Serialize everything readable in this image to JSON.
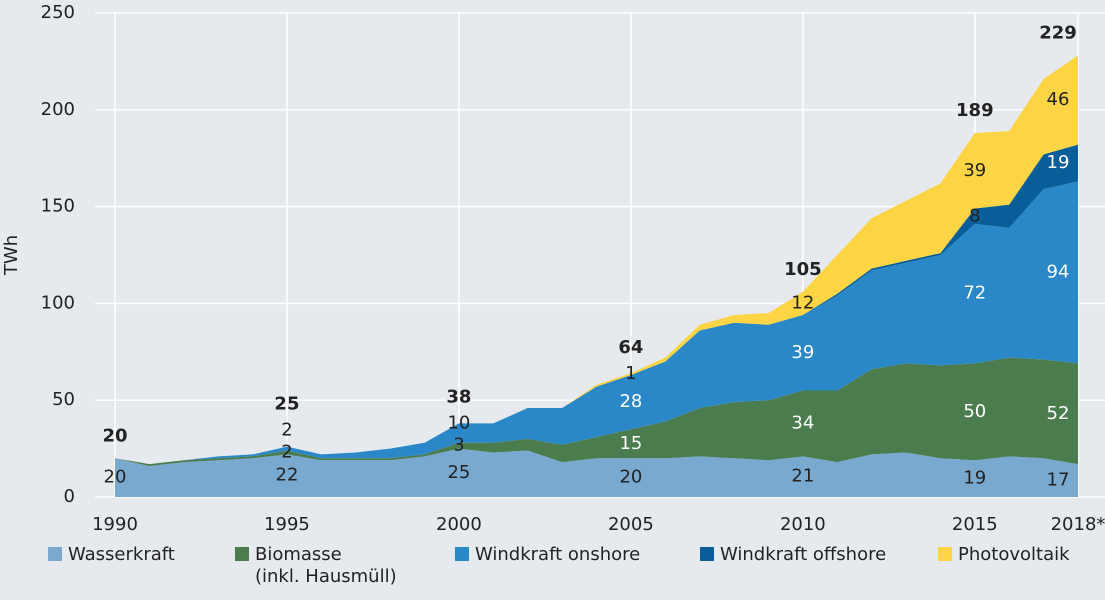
{
  "chart_data": {
    "type": "stacked-area",
    "y_label": "TWh",
    "x": [
      1990,
      1991,
      1992,
      1993,
      1994,
      1995,
      1996,
      1997,
      1998,
      1999,
      2000,
      2001,
      2002,
      2003,
      2004,
      2005,
      2006,
      2007,
      2008,
      2009,
      2010,
      2011,
      2012,
      2013,
      2014,
      2015,
      2016,
      2017,
      2018
    ],
    "series": [
      {
        "name": "Wasserkraft",
        "color": "#7aa9d0",
        "values": [
          20,
          16,
          18,
          19,
          20,
          22,
          19,
          19,
          19,
          21,
          25,
          23,
          24,
          18,
          20,
          20,
          20,
          21,
          20,
          19,
          21,
          18,
          22,
          23,
          20,
          19,
          21,
          20,
          17
        ],
        "value_labels": [
          "20",
          null,
          null,
          null,
          null,
          "22",
          null,
          null,
          null,
          null,
          "25",
          null,
          null,
          null,
          null,
          "20",
          null,
          null,
          null,
          null,
          "21",
          null,
          null,
          null,
          null,
          "19",
          null,
          null,
          "17"
        ]
      },
      {
        "name": "Biomasse\n(inkl. Hausmüll)",
        "color": "#4a7c4e",
        "values": [
          0,
          1,
          1,
          1,
          1,
          2,
          1,
          1,
          1,
          1,
          3,
          5,
          6,
          9,
          11,
          15,
          19,
          25,
          29,
          31,
          34,
          37,
          44,
          46,
          48,
          50,
          51,
          51,
          52
        ],
        "value_labels": [
          null,
          null,
          null,
          null,
          null,
          "2",
          null,
          null,
          null,
          null,
          "3",
          null,
          null,
          null,
          null,
          "15",
          null,
          null,
          null,
          null,
          "34",
          null,
          null,
          null,
          null,
          "50",
          null,
          null,
          "52"
        ]
      },
      {
        "name": "Windkraft onshore",
        "color": "#2a88c8",
        "values": [
          0,
          0,
          0,
          1,
          1,
          2,
          2,
          3,
          5,
          6,
          10,
          10,
          16,
          19,
          26,
          28,
          31,
          40,
          41,
          39,
          39,
          49,
          51,
          52,
          57,
          72,
          67,
          88,
          94
        ],
        "value_labels": [
          null,
          null,
          null,
          null,
          null,
          "2",
          null,
          null,
          null,
          null,
          "10",
          null,
          null,
          null,
          null,
          "28",
          null,
          null,
          null,
          null,
          "39",
          null,
          null,
          null,
          null,
          "72",
          null,
          null,
          "94"
        ]
      },
      {
        "name": "Windkraft offshore",
        "color": "#085e99",
        "values": [
          0,
          0,
          0,
          0,
          0,
          0,
          0,
          0,
          0,
          0,
          0,
          0,
          0,
          0,
          0,
          0,
          0,
          0,
          0,
          0,
          0,
          1,
          1,
          1,
          1,
          8,
          12,
          18,
          19
        ],
        "value_labels": [
          null,
          null,
          null,
          null,
          null,
          null,
          null,
          null,
          null,
          null,
          null,
          null,
          null,
          null,
          null,
          null,
          null,
          null,
          null,
          null,
          null,
          null,
          null,
          null,
          null,
          "8",
          null,
          null,
          "19"
        ]
      },
      {
        "name": "Photovoltaik",
        "color": "#fdd444",
        "values": [
          0,
          0,
          0,
          0,
          0,
          0,
          0,
          0,
          0,
          0,
          0,
          0,
          0,
          0,
          1,
          1,
          2,
          3,
          4,
          6,
          12,
          20,
          26,
          31,
          36,
          39,
          38,
          39,
          46
        ],
        "value_labels": [
          null,
          null,
          null,
          null,
          null,
          null,
          null,
          null,
          null,
          null,
          null,
          null,
          null,
          null,
          null,
          "1",
          null,
          null,
          null,
          null,
          "12",
          null,
          null,
          null,
          null,
          "39",
          null,
          null,
          "46"
        ]
      }
    ],
    "totals": [
      20,
      null,
      null,
      null,
      null,
      25,
      null,
      null,
      null,
      null,
      38,
      null,
      null,
      null,
      null,
      64,
      null,
      null,
      null,
      null,
      105,
      null,
      null,
      null,
      null,
      189,
      null,
      null,
      229
    ],
    "xlim": [
      1990,
      2018
    ],
    "ylim": [
      0,
      250
    ],
    "xticks": [
      1990,
      1995,
      2000,
      2005,
      2010,
      2015,
      {
        "value": 2018,
        "label": "2018*"
      }
    ],
    "yticks": [
      0,
      50,
      100,
      150,
      200,
      250
    ],
    "grid": true
  }
}
